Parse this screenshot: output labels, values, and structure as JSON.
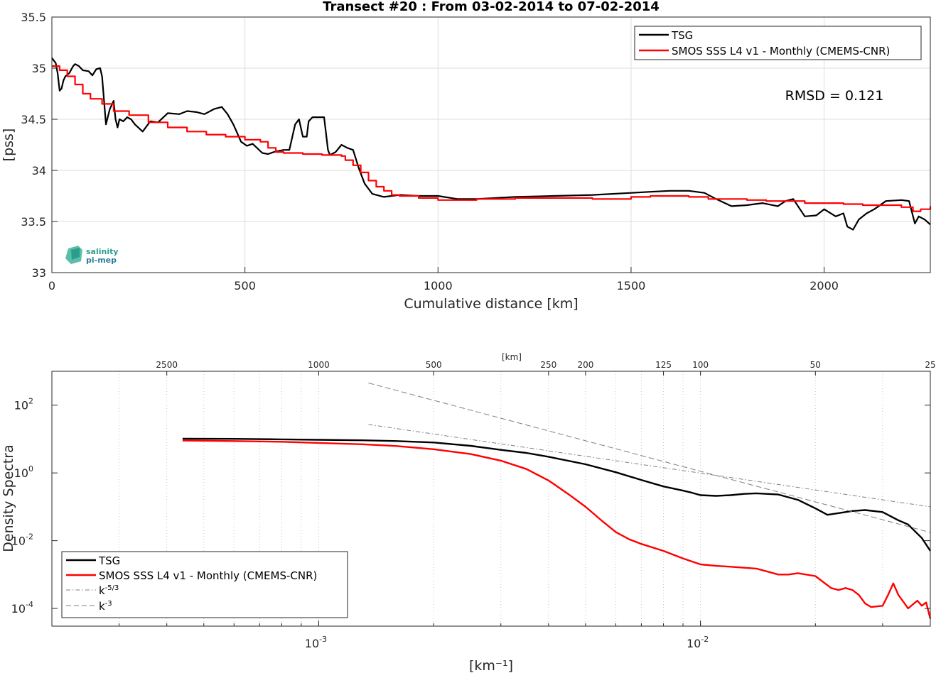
{
  "chart_data": [
    {
      "type": "line",
      "title": "Transect #20 : From 03-02-2014 to 07-02-2014",
      "xlabel": "Cumulative distance [km]",
      "ylabel": "[pss]",
      "xlim": [
        0,
        2275
      ],
      "ylim": [
        33,
        35.5
      ],
      "x_ticks": [
        "0",
        "500",
        "1000",
        "1500",
        "2000"
      ],
      "y_ticks": [
        "33",
        "33.5",
        "34",
        "34.5",
        "35",
        "35.5"
      ],
      "grid": true,
      "legend_position": "top-right",
      "annotation": "RMSD = 0.121",
      "logo": {
        "line1": "salinity",
        "line2": "pi-mep"
      },
      "series": [
        {
          "name": "TSG",
          "color": "#000000",
          "x": [
            0,
            10,
            15,
            20,
            25,
            30,
            35,
            45,
            55,
            60,
            70,
            80,
            95,
            105,
            115,
            125,
            130,
            140,
            150,
            160,
            165,
            170,
            175,
            185,
            195,
            205,
            215,
            235,
            255,
            275,
            300,
            330,
            350,
            375,
            395,
            420,
            440,
            455,
            470,
            490,
            505,
            520,
            545,
            560,
            575,
            600,
            615,
            630,
            640,
            650,
            660,
            665,
            675,
            690,
            705,
            715,
            720,
            735,
            750,
            765,
            780,
            795,
            810,
            830,
            860,
            900,
            950,
            1000,
            1050,
            1100,
            1200,
            1300,
            1400,
            1500,
            1550,
            1600,
            1650,
            1690,
            1720,
            1760,
            1800,
            1840,
            1880,
            1900,
            1920,
            1950,
            1980,
            2000,
            2030,
            2050,
            2060,
            2075,
            2090,
            2110,
            2130,
            2160,
            2200,
            2220,
            2235,
            2245,
            2260,
            2275
          ],
          "y": [
            35.1,
            35.05,
            34.95,
            34.78,
            34.8,
            34.88,
            34.92,
            34.95,
            35.02,
            35.04,
            35.02,
            34.98,
            34.97,
            34.93,
            34.99,
            35.0,
            34.92,
            34.45,
            34.6,
            34.68,
            34.5,
            34.42,
            34.5,
            34.48,
            34.52,
            34.5,
            34.45,
            34.38,
            34.48,
            34.47,
            34.56,
            34.55,
            34.58,
            34.57,
            34.55,
            34.6,
            34.62,
            34.55,
            34.45,
            34.28,
            34.24,
            34.26,
            34.17,
            34.16,
            34.18,
            34.2,
            34.2,
            34.45,
            34.5,
            34.33,
            34.33,
            34.48,
            34.52,
            34.52,
            34.52,
            34.2,
            34.15,
            34.18,
            34.25,
            34.22,
            34.2,
            34.02,
            33.87,
            33.77,
            33.74,
            33.76,
            33.75,
            33.75,
            33.72,
            33.72,
            33.74,
            33.75,
            33.76,
            33.78,
            33.79,
            33.8,
            33.8,
            33.78,
            33.72,
            33.65,
            33.66,
            33.68,
            33.65,
            33.7,
            33.72,
            33.55,
            33.56,
            33.62,
            33.55,
            33.58,
            33.45,
            33.42,
            33.52,
            33.58,
            33.62,
            33.7,
            33.71,
            33.7,
            33.48,
            33.55,
            33.52,
            33.47
          ]
        },
        {
          "name": "SMOS SSS L4 v1 - Monthly (CMEMS-CNR)",
          "color": "#ff0000",
          "x": [
            0,
            20,
            40,
            60,
            80,
            100,
            130,
            160,
            200,
            250,
            300,
            350,
            400,
            450,
            500,
            540,
            560,
            580,
            600,
            650,
            700,
            750,
            760,
            780,
            800,
            820,
            840,
            860,
            880,
            900,
            950,
            1000,
            1050,
            1100,
            1200,
            1300,
            1400,
            1500,
            1550,
            1600,
            1650,
            1700,
            1750,
            1800,
            1850,
            1900,
            1950,
            2000,
            2050,
            2100,
            2150,
            2200,
            2230,
            2250,
            2275
          ],
          "y": [
            35.02,
            34.98,
            34.92,
            34.84,
            34.75,
            34.7,
            34.65,
            34.58,
            34.54,
            34.47,
            34.42,
            34.38,
            34.35,
            34.33,
            34.3,
            34.28,
            34.22,
            34.18,
            34.17,
            34.16,
            34.15,
            34.14,
            34.1,
            34.05,
            33.98,
            33.9,
            33.84,
            33.8,
            33.76,
            33.75,
            33.73,
            33.71,
            33.71,
            33.72,
            33.73,
            33.73,
            33.72,
            33.74,
            33.75,
            33.75,
            33.74,
            33.72,
            33.72,
            33.71,
            33.7,
            33.7,
            33.68,
            33.68,
            33.67,
            33.66,
            33.66,
            33.64,
            33.6,
            33.62,
            33.65
          ]
        }
      ]
    },
    {
      "type": "line",
      "xlabel": "[km⁻¹]",
      "ylabel": "Density Spectra",
      "x_scale": "log",
      "y_scale": "log",
      "xlim": [
        0.0002,
        0.04
      ],
      "ylim": [
        3e-05,
        1000
      ],
      "x_ticks": [
        {
          "value": 0.001,
          "label": "10",
          "exponent": "-3"
        },
        {
          "value": 0.01,
          "label": "10",
          "exponent": "-2"
        }
      ],
      "y_ticks": [
        {
          "value": 0.0001,
          "label": "10",
          "exponent": "-4"
        },
        {
          "value": 0.01,
          "label": "10",
          "exponent": "-2"
        },
        {
          "value": 1,
          "label": "10",
          "exponent": "0"
        },
        {
          "value": 100,
          "label": "10",
          "exponent": "2"
        }
      ],
      "top_axis_label": "[km]",
      "top_axis_ticks": [
        "2500",
        "1000",
        "500",
        "250",
        "200",
        "125",
        "100",
        "50",
        "25"
      ],
      "grid": "x-minor",
      "legend_position": "bottom-left",
      "series": [
        {
          "name": "TSG",
          "color": "#000000",
          "x": [
            0.00044,
            0.0006,
            0.0008,
            0.001,
            0.0013,
            0.0016,
            0.002,
            0.0025,
            0.003,
            0.0035,
            0.004,
            0.005,
            0.006,
            0.007,
            0.008,
            0.009,
            0.0095,
            0.01,
            0.011,
            0.012,
            0.013,
            0.014,
            0.016,
            0.018,
            0.02,
            0.0215,
            0.023,
            0.025,
            0.027,
            0.03,
            0.033,
            0.035,
            0.038,
            0.04
          ],
          "y": [
            10.2,
            10.1,
            9.8,
            9.5,
            9.2,
            8.7,
            7.9,
            6.3,
            4.8,
            3.9,
            3.0,
            1.8,
            1.05,
            0.62,
            0.4,
            0.3,
            0.26,
            0.22,
            0.21,
            0.22,
            0.24,
            0.25,
            0.23,
            0.16,
            0.09,
            0.058,
            0.065,
            0.075,
            0.08,
            0.07,
            0.04,
            0.03,
            0.012,
            0.005
          ]
        },
        {
          "name": "SMOS SSS L4 v1 - Monthly (CMEMS-CNR)",
          "color": "#ff0000",
          "x": [
            0.00044,
            0.0006,
            0.0008,
            0.001,
            0.0013,
            0.0016,
            0.002,
            0.0025,
            0.003,
            0.0035,
            0.004,
            0.0045,
            0.005,
            0.0055,
            0.006,
            0.0065,
            0.007,
            0.008,
            0.009,
            0.01,
            0.011,
            0.012,
            0.014,
            0.016,
            0.017,
            0.018,
            0.02,
            0.022,
            0.023,
            0.024,
            0.025,
            0.026,
            0.027,
            0.028,
            0.03,
            0.031,
            0.032,
            0.033,
            0.035,
            0.037,
            0.038,
            0.039,
            0.04
          ],
          "y": [
            9.0,
            8.7,
            8.3,
            7.7,
            7.0,
            6.2,
            5.0,
            3.6,
            2.3,
            1.3,
            0.6,
            0.24,
            0.1,
            0.04,
            0.018,
            0.011,
            0.008,
            0.005,
            0.003,
            0.002,
            0.0018,
            0.0017,
            0.0015,
            0.001,
            0.001,
            0.0011,
            0.0009,
            0.0004,
            0.00035,
            0.0004,
            0.00035,
            0.00025,
            0.00014,
            0.00011,
            0.00012,
            0.00025,
            0.00055,
            0.00025,
            0.0001,
            0.00017,
            0.00012,
            0.00015,
            5e-05
          ]
        },
        {
          "name": "k⁻⁵ᐟ³",
          "legend_label": "k",
          "legend_exponent": "-5/3",
          "color": "#808080",
          "dash": "dashdot",
          "x": [
            0.00135,
            0.04
          ],
          "y": [
            27,
            0.1
          ]
        },
        {
          "name": "k⁻³",
          "legend_label": "k",
          "legend_exponent": "-3",
          "color": "#808080",
          "dash": "dash",
          "x": [
            0.00135,
            0.04
          ],
          "y": [
            450,
            0.0175
          ]
        }
      ]
    }
  ]
}
